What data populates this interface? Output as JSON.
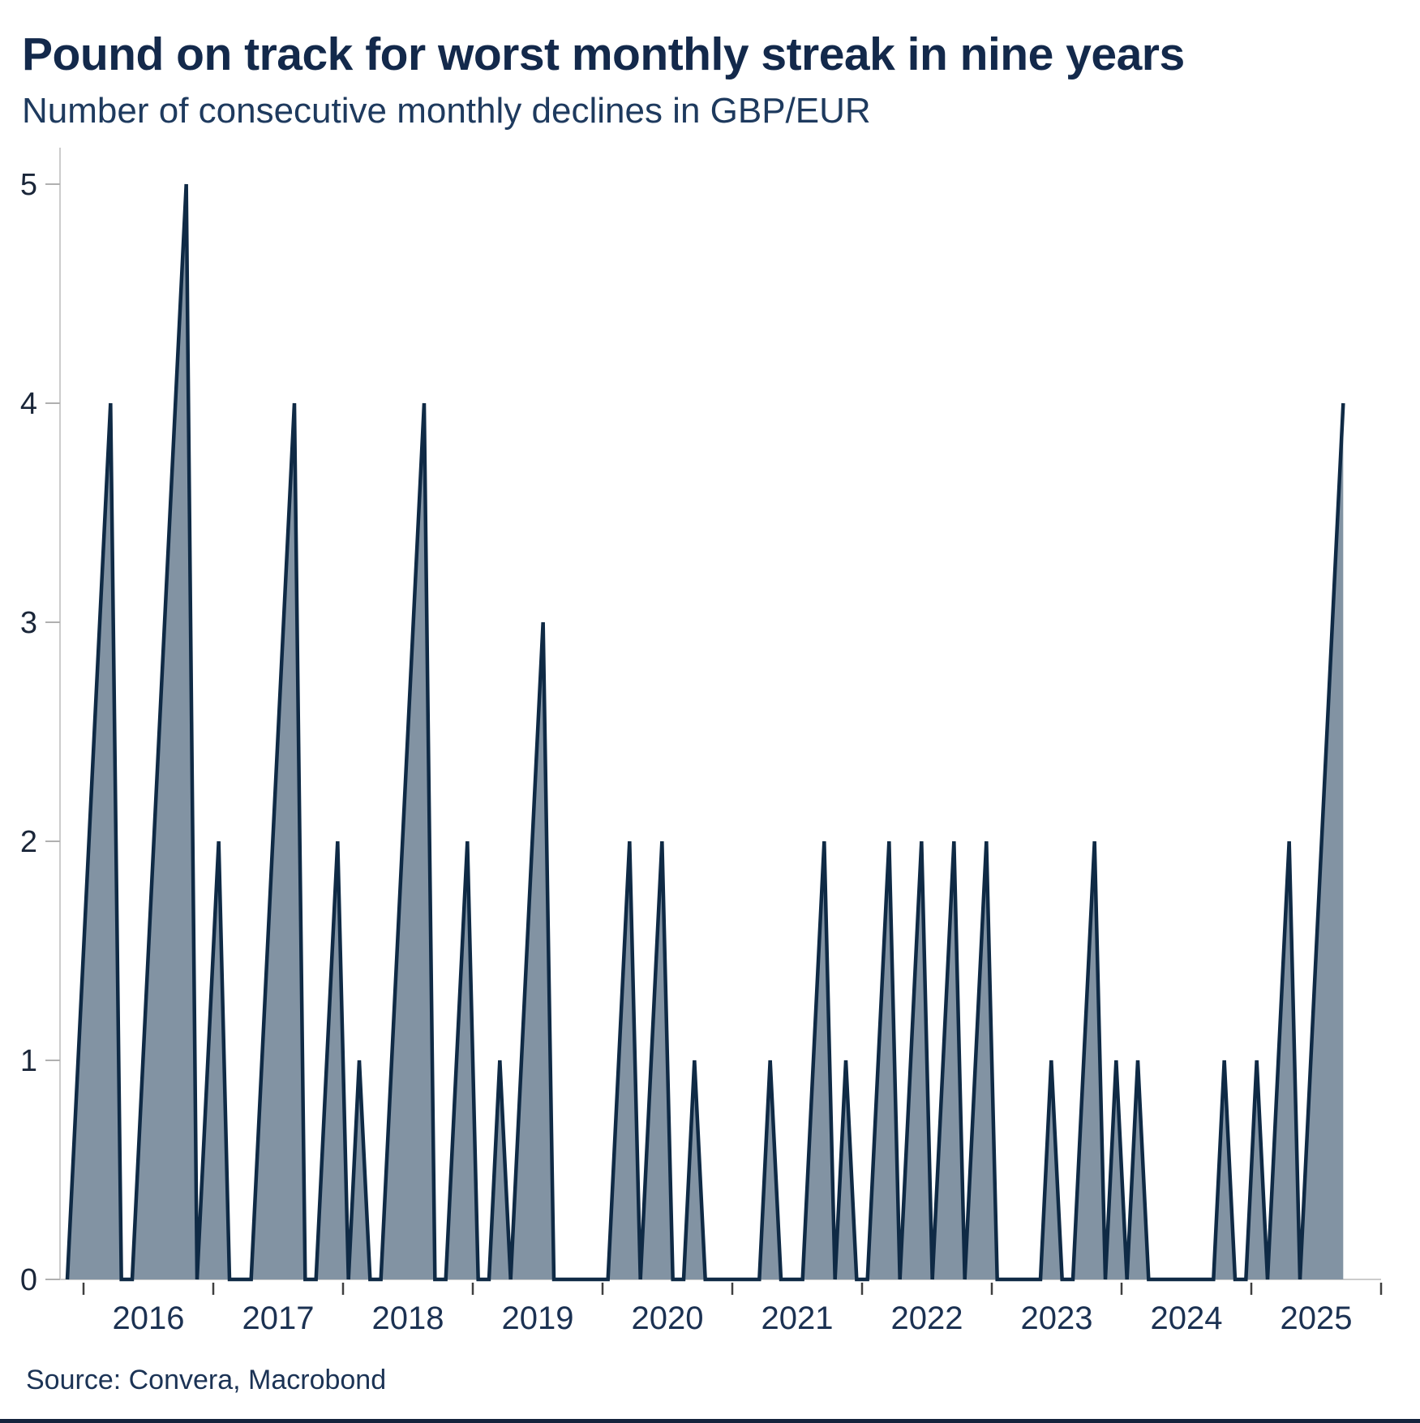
{
  "header": {
    "title": "Pound on track for worst monthly streak in nine years",
    "subtitle": "Number of consecutive monthly declines in GBP/EUR"
  },
  "source": {
    "label": "Source: Convera, Macrobond"
  },
  "chart_data": {
    "type": "area",
    "title": "Pound on track for worst monthly streak in nine years",
    "subtitle": "Number of consecutive monthly declines in GBP/EUR",
    "x_start_month": "2015-11",
    "x_end_month": "2025-09",
    "frequency": "monthly",
    "values": [
      0,
      1,
      2,
      3,
      4,
      0,
      0,
      1,
      2,
      3,
      4,
      5,
      0,
      1,
      2,
      0,
      0,
      0,
      1,
      2,
      3,
      4,
      0,
      0,
      1,
      2,
      0,
      1,
      0,
      0,
      1,
      2,
      3,
      4,
      0,
      0,
      1,
      2,
      0,
      0,
      1,
      0,
      1,
      2,
      3,
      0,
      0,
      0,
      0,
      0,
      0,
      1,
      2,
      0,
      1,
      2,
      0,
      0,
      1,
      0,
      0,
      0,
      0,
      0,
      0,
      1,
      0,
      0,
      0,
      1,
      2,
      0,
      1,
      0,
      0,
      1,
      2,
      0,
      1,
      2,
      0,
      1,
      2,
      0,
      1,
      2,
      0,
      0,
      0,
      0,
      0,
      1,
      0,
      0,
      1,
      2,
      0,
      1,
      0,
      1,
      0,
      0,
      0,
      0,
      0,
      0,
      0,
      1,
      0,
      0,
      1,
      0,
      1,
      2,
      0,
      1,
      2,
      3,
      4
    ],
    "y_ticks": [
      0,
      1,
      2,
      3,
      4,
      5
    ],
    "ylim": [
      0,
      5
    ],
    "x_year_labels": [
      "2016",
      "2017",
      "2018",
      "2019",
      "2020",
      "2021",
      "2022",
      "2023",
      "2024",
      "2025"
    ],
    "grid": "off",
    "legend": "none",
    "colors": {
      "line": "#0f2a45",
      "fill": "#8293a3",
      "axis_line": "#cccccc",
      "y_tick": "#b0b0b0",
      "x_tick": "#3f3f3f",
      "tick_label": "#1a2639",
      "year_label": "#1b3152"
    }
  }
}
